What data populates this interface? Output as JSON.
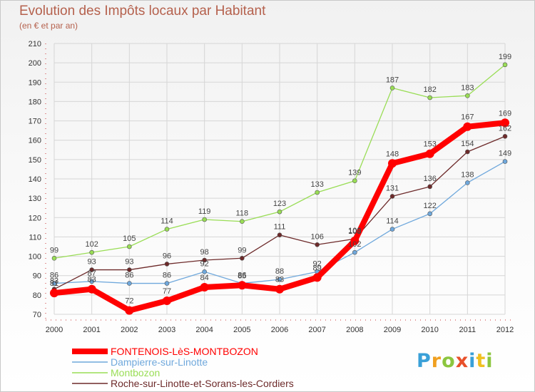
{
  "chart_data": {
    "type": "line",
    "title": "Evolution des Impôts locaux par Habitant",
    "subtitle": "(en € et par an)",
    "xlabel": "",
    "ylabel": "",
    "x": [
      "2000",
      "2001",
      "2002",
      "2003",
      "2004",
      "2005",
      "2006",
      "2007",
      "2008",
      "2009",
      "2010",
      "2011",
      "2012"
    ],
    "ylim": [
      70,
      210
    ],
    "yticks": [
      70,
      80,
      90,
      100,
      110,
      120,
      130,
      140,
      150,
      160,
      170,
      180,
      190,
      200,
      210
    ],
    "grid": true,
    "legend_position": "bottom-left",
    "series": [
      {
        "name": "FONTENOIS-LèS-MONTBOZON",
        "color": "#ff0000",
        "emphasis": true,
        "values": [
          81,
          83,
          72,
          77,
          84,
          85,
          83,
          89,
          108,
          148,
          153,
          167,
          169
        ]
      },
      {
        "name": "Dampierre-sur-Linotte",
        "color": "#6fa8dc",
        "values": [
          86,
          87,
          86,
          86,
          92,
          86,
          88,
          92,
          102,
          114,
          122,
          138,
          149
        ]
      },
      {
        "name": "Montbozon",
        "color": "#99dd55",
        "values": [
          99,
          102,
          105,
          114,
          119,
          118,
          123,
          133,
          139,
          187,
          182,
          183,
          199
        ]
      },
      {
        "name": "Roche-sur-Linotte-et-Sorans-les-Cordiers",
        "color": "#6d2a2a",
        "values": [
          83,
          93,
          93,
          96,
          98,
          99,
          111,
          106,
          109,
          131,
          136,
          154,
          162
        ]
      }
    ]
  },
  "logo": {
    "letters": [
      "P",
      "r",
      "o",
      "x",
      "i",
      "t",
      "i"
    ]
  }
}
